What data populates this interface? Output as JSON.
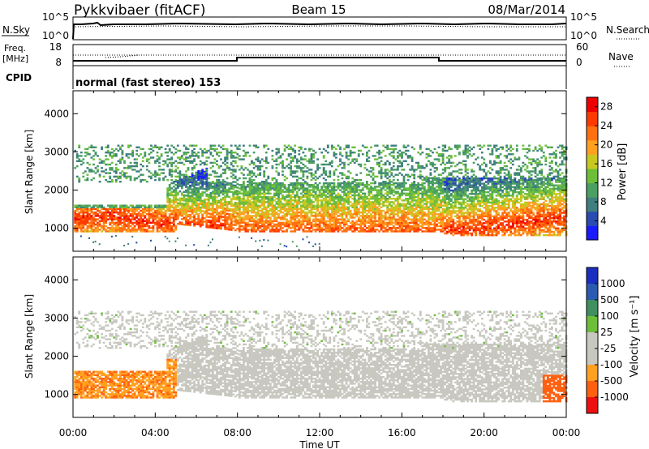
{
  "header": {
    "station": "Pykkvibaer (fitACF)",
    "beam": "Beam 15",
    "date": "08/Mar/2014"
  },
  "nsky_panel": {
    "left_label": "N.Sky",
    "right_label": "N.Search",
    "ticks": [
      "10^5",
      "10^0"
    ]
  },
  "freq_panel": {
    "left_label_1": "Freq.",
    "left_label_2": "[MHz]",
    "left_ticks": [
      "18",
      "8"
    ],
    "right_label": "Nave",
    "right_ticks": [
      "60",
      "0"
    ]
  },
  "cpid": {
    "label": "CPID",
    "value": "normal (fast stereo) 153"
  },
  "colors": {
    "power": [
      "#1a1aff",
      "#2a4bb0",
      "#3f7f7f",
      "#4aa060",
      "#6dbf3a",
      "#c8c820",
      "#ffa020",
      "#ff7010",
      "#ff3a00",
      "#ee0000"
    ],
    "velocity": [
      "#ee1010",
      "#ff6010",
      "#ffa020",
      "#c8c8c0",
      "#c8c8c0",
      "#6dbf3a",
      "#3f8f5f",
      "#2a5bb0",
      "#1a2fbf"
    ],
    "velocity_null": "#c8c8c0"
  },
  "chart_data": [
    {
      "type": "heatmap",
      "quantity": "power",
      "ylabel": "Slant Range [km]",
      "yticks": [
        1000,
        2000,
        3000,
        4000
      ],
      "ylim": [
        400,
        4600
      ],
      "xlim": [
        0,
        24
      ],
      "colorbar_label": "Power [dB]",
      "colorbar_ticks": [
        4,
        8,
        12,
        16,
        20,
        24,
        28
      ],
      "colorbar_range": [
        0,
        30
      ]
    },
    {
      "type": "heatmap",
      "quantity": "velocity",
      "ylabel": "Slant Range [km]",
      "yticks": [
        1000,
        2000,
        3000,
        4000
      ],
      "ylim": [
        400,
        4600
      ],
      "xlim": [
        0,
        24
      ],
      "colorbar_label": "Velocity [m s⁻¹]",
      "colorbar_ticks": [
        "1000",
        "500",
        "100",
        "25",
        "-25",
        "-100",
        "-500",
        "-1000"
      ]
    }
  ],
  "time_axis": {
    "ticks": [
      "00:00",
      "04:00",
      "08:00",
      "12:00",
      "16:00",
      "20:00",
      "00:00"
    ],
    "label": "Time UT"
  }
}
